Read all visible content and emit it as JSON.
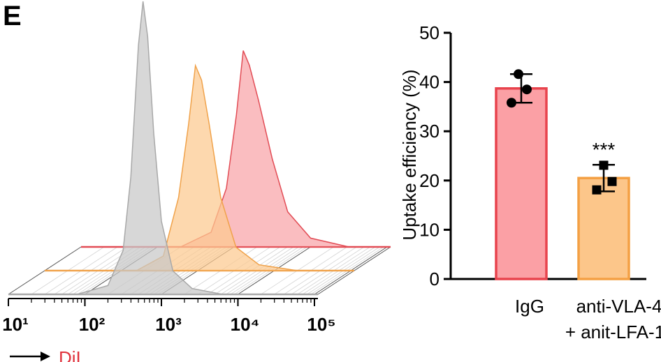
{
  "panel_label": "E",
  "chart_data": [
    {
      "type": "density",
      "xlabel": "DiI",
      "xscale": "log",
      "xlim": [
        10,
        100000
      ],
      "xticks": [
        {
          "value": 10,
          "label": "10¹"
        },
        {
          "value": 100,
          "label": "10²"
        },
        {
          "value": 1000,
          "label": "10³"
        },
        {
          "value": 10000,
          "label": "10⁴"
        },
        {
          "value": 100000,
          "label": "10⁵"
        }
      ],
      "ylim": [
        0,
        100
      ],
      "series": [
        {
          "color": "#c8c8c8",
          "edge": "#a8a8a8",
          "x": [
            79,
            200,
            316,
            398,
            501,
            575,
            661,
            794,
            1000,
            1413,
            2512,
            6310
          ],
          "values": [
            0,
            3,
            15,
            40,
            85,
            100,
            88,
            55,
            25,
            8,
            2,
            0
          ]
        },
        {
          "color": "#fcc98f",
          "edge": "#f0a24a",
          "x": [
            158,
            355,
            562,
            759,
            933,
            1122,
            1413,
            1995,
            3162,
            6310,
            19953
          ],
          "values": [
            0,
            5,
            25,
            50,
            70,
            65,
            50,
            25,
            8,
            2,
            0
          ]
        },
        {
          "color": "#f8a3a8",
          "edge": "#e24c55",
          "x": [
            200,
            501,
            794,
            1072,
            1318,
            1585,
            2089,
            3162,
            5012,
            10000,
            31623
          ],
          "values": [
            0,
            5,
            20,
            45,
            67,
            62,
            50,
            30,
            12,
            3,
            0
          ]
        }
      ]
    },
    {
      "type": "bar",
      "ylabel": "Uptake efficiency (%)",
      "categories": [
        "IgG",
        [
          "anti-VLA-4",
          "+ anit-LFA-1"
        ]
      ],
      "values": [
        38.7,
        20.5
      ],
      "errors": [
        2.9,
        2.7
      ],
      "points": [
        [
          41.6,
          38.5,
          35.8
        ],
        [
          23.1,
          19.8,
          18.1
        ]
      ],
      "markers": [
        "circle",
        "square"
      ],
      "colors": [
        "#fba0a5",
        "#fcc68a"
      ],
      "edges": [
        "#e8434d",
        "#f4a044"
      ],
      "annotations": [
        null,
        "***"
      ],
      "ylim": [
        0,
        50
      ],
      "yticks": [
        0,
        10,
        20,
        30,
        40,
        50
      ]
    }
  ]
}
